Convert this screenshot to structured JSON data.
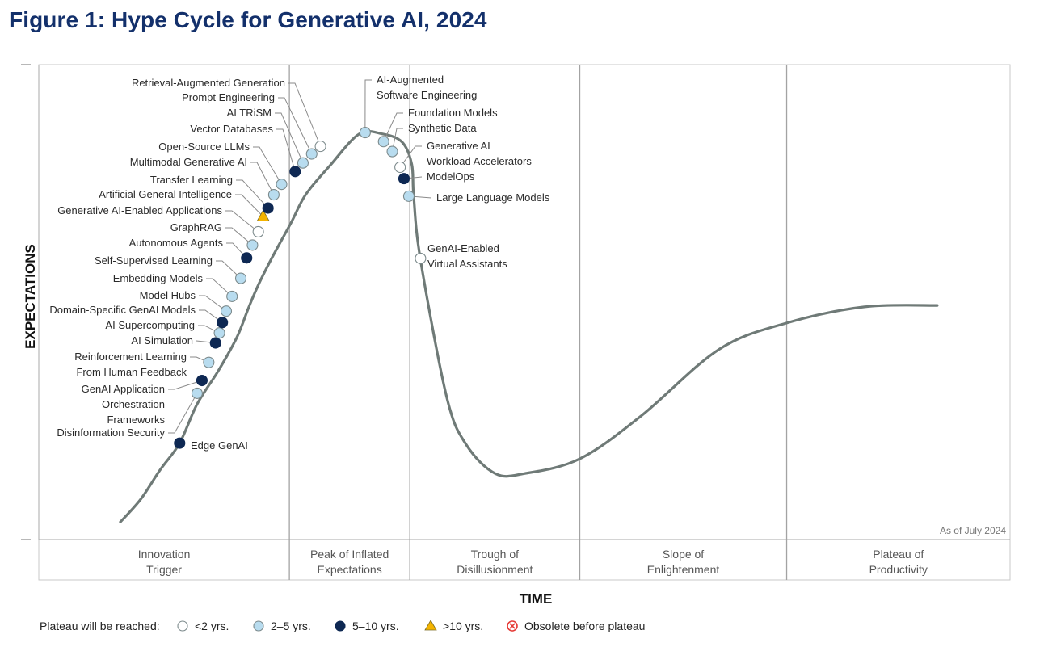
{
  "colors": {
    "lt2": "#ffffff",
    "2to5": "#b8dcef",
    "5to10": "#0e2853",
    "gt10": "#f4b400",
    "obsolete": "#e53935",
    "curve": "#6f7a77",
    "title": "#13306b"
  },
  "chart_data": {
    "type": "hype-cycle",
    "title": "Figure 1: Hype Cycle for Generative AI, 2024",
    "xlabel": "TIME",
    "ylabel": "EXPECTATIONS",
    "as_of": "As of July 2024",
    "x_range": [
      0,
      100
    ],
    "y_range": [
      0,
      100
    ],
    "phases": [
      {
        "name": "Innovation Trigger",
        "lines": [
          "Innovation",
          "Trigger"
        ],
        "start": 0,
        "end": 25.8
      },
      {
        "name": "Peak of Inflated Expectations",
        "lines": [
          "Peak of Inflated",
          "Expectations"
        ],
        "start": 25.8,
        "end": 38.2
      },
      {
        "name": "Trough of Disillusionment",
        "lines": [
          "Trough of",
          "Disillusionment"
        ],
        "start": 38.2,
        "end": 55.7
      },
      {
        "name": "Slope of Enlightenment",
        "lines": [
          "Slope of",
          "Enlightenment"
        ],
        "start": 55.7,
        "end": 77.0
      },
      {
        "name": "Plateau of Productivity",
        "lines": [
          "Plateau of",
          "Productivity"
        ],
        "start": 77.0,
        "end": 100
      }
    ],
    "curve": [
      [
        8.4,
        3.7
      ],
      [
        10.5,
        8.5
      ],
      [
        12.5,
        14.7
      ],
      [
        14.5,
        20.3
      ],
      [
        16.3,
        28.5
      ],
      [
        18.5,
        35.6
      ],
      [
        20.4,
        42.6
      ],
      [
        21.6,
        48.8
      ],
      [
        22.6,
        53.6
      ],
      [
        24.0,
        59.3
      ],
      [
        26.0,
        66.8
      ],
      [
        27.5,
        72.7
      ],
      [
        30.0,
        78.8
      ],
      [
        33.0,
        85.4
      ],
      [
        35.4,
        85.4
      ],
      [
        37.4,
        83.7
      ],
      [
        38.4,
        79.0
      ],
      [
        38.6,
        72.2
      ],
      [
        39.3,
        58.9
      ],
      [
        42.0,
        30.0
      ],
      [
        44.0,
        20.0
      ],
      [
        47.0,
        13.9
      ],
      [
        50.0,
        13.9
      ],
      [
        55.7,
        17.0
      ],
      [
        62.0,
        26.0
      ],
      [
        70.0,
        40.0
      ],
      [
        77.0,
        45.6
      ],
      [
        85.0,
        49.0
      ],
      [
        92.5,
        49.3
      ]
    ],
    "legend": {
      "label": "Plateau will be reached:",
      "items": [
        {
          "key": "lt2",
          "label": "<2 yrs."
        },
        {
          "key": "2to5",
          "label": "2–5 yrs."
        },
        {
          "key": "5to10",
          "label": "5–10 yrs."
        },
        {
          "key": "gt10",
          "label": ">10 yrs."
        },
        {
          "key": "obsolete",
          "label": "Obsolete before plateau"
        }
      ]
    },
    "points": [
      {
        "id": "edge-genai",
        "lines": [
          "Edge GenAI"
        ],
        "status": "5to10",
        "x": 14.5,
        "y": 20.3
      },
      {
        "id": "disinformation-security",
        "lines": [
          "Disinformation Security"
        ],
        "status": "2to5",
        "x": 16.3,
        "y": 30.8
      },
      {
        "id": "genai-application-orchestration-frameworks",
        "lines": [
          "GenAI Application",
          "Orchestration",
          "Frameworks"
        ],
        "status": "5to10",
        "x": 16.8,
        "y": 33.5
      },
      {
        "id": "rlhf",
        "lines": [
          "Reinforcement Learning",
          "From Human Feedback"
        ],
        "status": "2to5",
        "x": 17.5,
        "y": 37.3
      },
      {
        "id": "ai-simulation",
        "lines": [
          "AI Simulation"
        ],
        "status": "5to10",
        "x": 18.2,
        "y": 41.4
      },
      {
        "id": "ai-supercomputing",
        "lines": [
          "AI Supercomputing"
        ],
        "status": "2to5",
        "x": 18.6,
        "y": 43.5
      },
      {
        "id": "domain-specific-genai-models",
        "lines": [
          "Domain-Specific GenAI Models"
        ],
        "status": "5to10",
        "x": 18.9,
        "y": 45.7
      },
      {
        "id": "model-hubs",
        "lines": [
          "Model Hubs"
        ],
        "status": "2to5",
        "x": 19.3,
        "y": 48.1
      },
      {
        "id": "embedding-models",
        "lines": [
          "Embedding Models"
        ],
        "status": "2to5",
        "x": 19.9,
        "y": 51.2
      },
      {
        "id": "self-supervised-learning",
        "lines": [
          "Self-Supervised Learning"
        ],
        "status": "2to5",
        "x": 20.8,
        "y": 55.0
      },
      {
        "id": "autonomous-agents",
        "lines": [
          "Autonomous Agents"
        ],
        "status": "5to10",
        "x": 21.4,
        "y": 59.3
      },
      {
        "id": "graphrag",
        "lines": [
          "GraphRAG"
        ],
        "status": "2to5",
        "x": 22.0,
        "y": 62.0
      },
      {
        "id": "genai-enabled-applications",
        "lines": [
          "Generative AI-Enabled Applications"
        ],
        "status": "lt2",
        "x": 22.6,
        "y": 64.8
      },
      {
        "id": "agi",
        "lines": [
          "Artificial General Intelligence"
        ],
        "status": "gt10",
        "x": 23.1,
        "y": 68.0
      },
      {
        "id": "transfer-learning",
        "lines": [
          "Transfer Learning"
        ],
        "status": "5to10",
        "x": 23.6,
        "y": 69.8
      },
      {
        "id": "multimodal-generative-ai",
        "lines": [
          "Multimodal Generative AI"
        ],
        "status": "2to5",
        "x": 24.2,
        "y": 72.6
      },
      {
        "id": "open-source-llms",
        "lines": [
          "Open-Source LLMs"
        ],
        "status": "2to5",
        "x": 25.0,
        "y": 74.8
      },
      {
        "id": "vector-databases",
        "lines": [
          "Vector Databases"
        ],
        "status": "5to10",
        "x": 26.4,
        "y": 77.5
      },
      {
        "id": "ai-trism",
        "lines": [
          "AI TRiSM"
        ],
        "status": "2to5",
        "x": 27.2,
        "y": 79.3
      },
      {
        "id": "prompt-engineering",
        "lines": [
          "Prompt Engineering"
        ],
        "status": "2to5",
        "x": 28.1,
        "y": 81.2
      },
      {
        "id": "rag",
        "lines": [
          "Retrieval-Augmented Generation"
        ],
        "status": "lt2",
        "x": 29.0,
        "y": 82.8
      },
      {
        "id": "ai-augmented-software-engineering",
        "lines": [
          "AI-Augmented",
          "Software Engineering"
        ],
        "status": "2to5",
        "x": 33.6,
        "y": 85.7
      },
      {
        "id": "foundation-models",
        "lines": [
          "Foundation Models"
        ],
        "status": "2to5",
        "x": 35.5,
        "y": 83.8
      },
      {
        "id": "synthetic-data",
        "lines": [
          "Synthetic Data"
        ],
        "status": "2to5",
        "x": 36.4,
        "y": 81.7
      },
      {
        "id": "genai-workload-accelerators",
        "lines": [
          "Generative AI",
          "Workload Accelerators"
        ],
        "status": "lt2",
        "x": 37.2,
        "y": 78.4
      },
      {
        "id": "modelops",
        "lines": [
          "ModelOps"
        ],
        "status": "5to10",
        "x": 37.6,
        "y": 76.0
      },
      {
        "id": "large-language-models",
        "lines": [
          "Large Language Models"
        ],
        "status": "2to5",
        "x": 38.1,
        "y": 72.3
      },
      {
        "id": "genai-enabled-virtual-assistants",
        "lines": [
          "GenAI-Enabled",
          "Virtual Assistants"
        ],
        "status": "lt2",
        "x": 39.3,
        "y": 59.2
      }
    ]
  }
}
